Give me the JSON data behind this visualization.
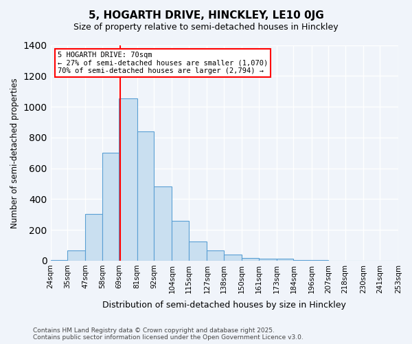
{
  "title": "5, HOGARTH DRIVE, HINCKLEY, LE10 0JG",
  "subtitle": "Size of property relative to semi-detached houses in Hinckley",
  "xlabel": "Distribution of semi-detached houses by size in Hinckley",
  "ylabel": "Number of semi-detached properties",
  "bar_color": "#c9dff0",
  "bar_edge_color": "#5a9fd4",
  "annotation_text": "5 HOGARTH DRIVE: 70sqm\n← 27% of semi-detached houses are smaller (1,070)\n70% of semi-detached houses are larger (2,794) →",
  "annotation_box_color": "white",
  "annotation_box_edge": "red",
  "vline_x": 70,
  "vline_color": "red",
  "categories": [
    "24sqm",
    "35sqm",
    "47sqm",
    "58sqm",
    "69sqm",
    "81sqm",
    "92sqm",
    "104sqm",
    "115sqm",
    "127sqm",
    "138sqm",
    "150sqm",
    "161sqm",
    "173sqm",
    "184sqm",
    "196sqm",
    "207sqm",
    "218sqm",
    "230sqm",
    "241sqm",
    "253sqm"
  ],
  "bin_edges": [
    24,
    35,
    47,
    58,
    69,
    81,
    92,
    104,
    115,
    127,
    138,
    150,
    161,
    173,
    184,
    196,
    207,
    218,
    230,
    241,
    253
  ],
  "values": [
    3,
    65,
    305,
    700,
    1055,
    840,
    480,
    260,
    125,
    65,
    38,
    17,
    12,
    12,
    4,
    2,
    1,
    0,
    0,
    0
  ],
  "ylim": [
    0,
    1400
  ],
  "yticks": [
    0,
    200,
    400,
    600,
    800,
    1000,
    1200,
    1400
  ],
  "footer": "Contains HM Land Registry data © Crown copyright and database right 2025.\nContains public sector information licensed under the Open Government Licence v3.0.",
  "background_color": "#f0f4fa",
  "grid_color": "white"
}
